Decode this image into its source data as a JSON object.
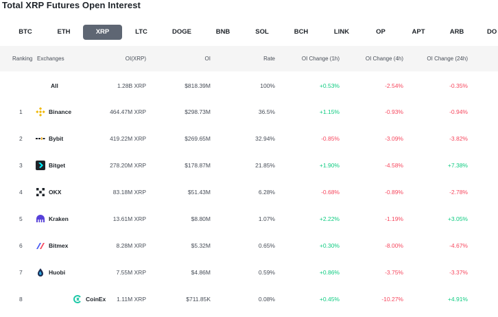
{
  "title": "Total XRP Futures Open Interest",
  "tabs": [
    "BTC",
    "ETH",
    "XRP",
    "LTC",
    "DOGE",
    "BNB",
    "SOL",
    "BCH",
    "LINK",
    "OP",
    "APT",
    "ARB",
    "DO"
  ],
  "active_tab": "XRP",
  "headers": {
    "ranking": "Ranking",
    "exchanges": "Exchanges",
    "oi_xrp": "OI(XRP)",
    "oi": "OI",
    "rate": "Rate",
    "oi_change_1h": "OI Change (1h)",
    "oi_change_4h": "OI Change (4h)",
    "oi_change_24h": "OI Change (24h)"
  },
  "rows": [
    {
      "rank": "",
      "exchange": "All",
      "icon": "none",
      "oi_xrp": "1.28B XRP",
      "oi": "$818.39M",
      "rate": "100%",
      "ch1h": "+0.53%",
      "ch4h": "-2.54%",
      "ch24h": "-0.35%"
    },
    {
      "rank": "1",
      "exchange": "Binance",
      "icon": "binance-icon",
      "oi_xrp": "464.47M XRP",
      "oi": "$298.73M",
      "rate": "36.5%",
      "ch1h": "+1.15%",
      "ch4h": "-0.93%",
      "ch24h": "-0.94%"
    },
    {
      "rank": "2",
      "exchange": "Bybit",
      "icon": "bybit-icon",
      "oi_xrp": "419.22M XRP",
      "oi": "$269.65M",
      "rate": "32.94%",
      "ch1h": "-0.85%",
      "ch4h": "-3.09%",
      "ch24h": "-3.82%"
    },
    {
      "rank": "3",
      "exchange": "Bitget",
      "icon": "bitget-icon",
      "oi_xrp": "278.20M XRP",
      "oi": "$178.87M",
      "rate": "21.85%",
      "ch1h": "+1.90%",
      "ch4h": "-4.58%",
      "ch24h": "+7.38%"
    },
    {
      "rank": "4",
      "exchange": "OKX",
      "icon": "okx-icon",
      "oi_xrp": "83.18M XRP",
      "oi": "$51.43M",
      "rate": "6.28%",
      "ch1h": "-0.68%",
      "ch4h": "-0.89%",
      "ch24h": "-2.78%"
    },
    {
      "rank": "5",
      "exchange": "Kraken",
      "icon": "kraken-icon",
      "oi_xrp": "13.61M XRP",
      "oi": "$8.80M",
      "rate": "1.07%",
      "ch1h": "+2.22%",
      "ch4h": "-1.19%",
      "ch24h": "+3.05%"
    },
    {
      "rank": "6",
      "exchange": "Bitmex",
      "icon": "bitmex-icon",
      "oi_xrp": "8.28M XRP",
      "oi": "$5.32M",
      "rate": "0.65%",
      "ch1h": "+0.30%",
      "ch4h": "-8.00%",
      "ch24h": "-4.67%"
    },
    {
      "rank": "7",
      "exchange": "Huobi",
      "icon": "huobi-icon",
      "oi_xrp": "7.55M XRP",
      "oi": "$4.86M",
      "rate": "0.59%",
      "ch1h": "+0.86%",
      "ch4h": "-3.75%",
      "ch24h": "-3.37%"
    },
    {
      "rank": "8",
      "exchange": "CoinEx",
      "icon": "coinex-icon",
      "oi_xrp": "1.11M XRP",
      "oi": "$711.85K",
      "rate": "0.08%",
      "ch1h": "+0.45%",
      "ch4h": "-10.27%",
      "ch24h": "+4.91%"
    }
  ],
  "colors": {
    "positive": "#0ecb81",
    "negative": "#f6465d",
    "active_tab_bg": "#5e6673",
    "header_bg": "#f5f5f5"
  }
}
